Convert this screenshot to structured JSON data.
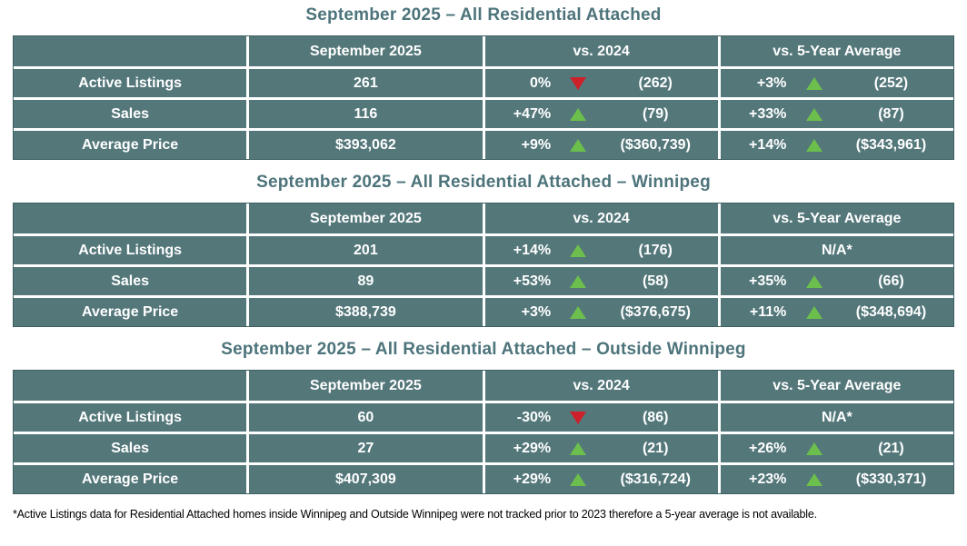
{
  "colors": {
    "cell_bg": "#54777A",
    "table_border": "#3E6063",
    "title_color": "#4D747B",
    "up_green": "#6CBF4C",
    "down_red": "#CE2029",
    "text_white": "#FFFFFF",
    "footnote_color": "#000000"
  },
  "icons": {
    "up": "▲",
    "down": "▼"
  },
  "tables": [
    {
      "title": "September 2025 – All Residential Attached",
      "headers": [
        "",
        "September 2025",
        "vs. 2024",
        "vs. 5-Year Average"
      ],
      "rows": [
        {
          "label": "Active Listings",
          "current": "261",
          "vs2024": {
            "pct": "0%",
            "dir": "down",
            "ref": "(262)"
          },
          "vs5yr": {
            "pct": "+3%",
            "dir": "up",
            "ref": "(252)"
          }
        },
        {
          "label": "Sales",
          "current": "116",
          "vs2024": {
            "pct": "+47%",
            "dir": "up",
            "ref": "(79)"
          },
          "vs5yr": {
            "pct": "+33%",
            "dir": "up",
            "ref": "(87)"
          }
        },
        {
          "label": "Average Price",
          "current": "$393,062",
          "vs2024": {
            "pct": "+9%",
            "dir": "up",
            "ref": "($360,739)"
          },
          "vs5yr": {
            "pct": "+14%",
            "dir": "up",
            "ref": "($343,961)"
          }
        }
      ]
    },
    {
      "title": "September 2025 – All Residential Attached – Winnipeg",
      "headers": [
        "",
        "September 2025",
        "vs. 2024",
        "vs. 5-Year Average"
      ],
      "rows": [
        {
          "label": "Active Listings",
          "current": "201",
          "vs2024": {
            "pct": "+14%",
            "dir": "up",
            "ref": "(176)"
          },
          "vs5yr": {
            "na": "N/A*"
          }
        },
        {
          "label": "Sales",
          "current": "89",
          "vs2024": {
            "pct": "+53%",
            "dir": "up",
            "ref": "(58)"
          },
          "vs5yr": {
            "pct": "+35%",
            "dir": "up",
            "ref": "(66)"
          }
        },
        {
          "label": "Average Price",
          "current": "$388,739",
          "vs2024": {
            "pct": "+3%",
            "dir": "up",
            "ref": "($376,675)"
          },
          "vs5yr": {
            "pct": "+11%",
            "dir": "up",
            "ref": "($348,694)"
          }
        }
      ]
    },
    {
      "title": "September 2025 – All Residential Attached – Outside Winnipeg",
      "headers": [
        "",
        "September 2025",
        "vs. 2024",
        "vs. 5-Year Average"
      ],
      "rows": [
        {
          "label": "Active Listings",
          "current": "60",
          "vs2024": {
            "pct": "-30%",
            "dir": "down",
            "ref": "(86)"
          },
          "vs5yr": {
            "na": "N/A*"
          }
        },
        {
          "label": "Sales",
          "current": "27",
          "vs2024": {
            "pct": "+29%",
            "dir": "up",
            "ref": "(21)"
          },
          "vs5yr": {
            "pct": "+26%",
            "dir": "up",
            "ref": "(21)"
          }
        },
        {
          "label": "Average Price",
          "current": "$407,309",
          "vs2024": {
            "pct": "+29%",
            "dir": "up",
            "ref": "($316,724)"
          },
          "vs5yr": {
            "pct": "+23%",
            "dir": "up",
            "ref": "($330,371)"
          }
        }
      ]
    }
  ],
  "footnote": "*Active Listings data for Residential Attached homes inside Winnipeg and Outside Winnipeg were not tracked prior to 2023 therefore a 5-year average is not available."
}
